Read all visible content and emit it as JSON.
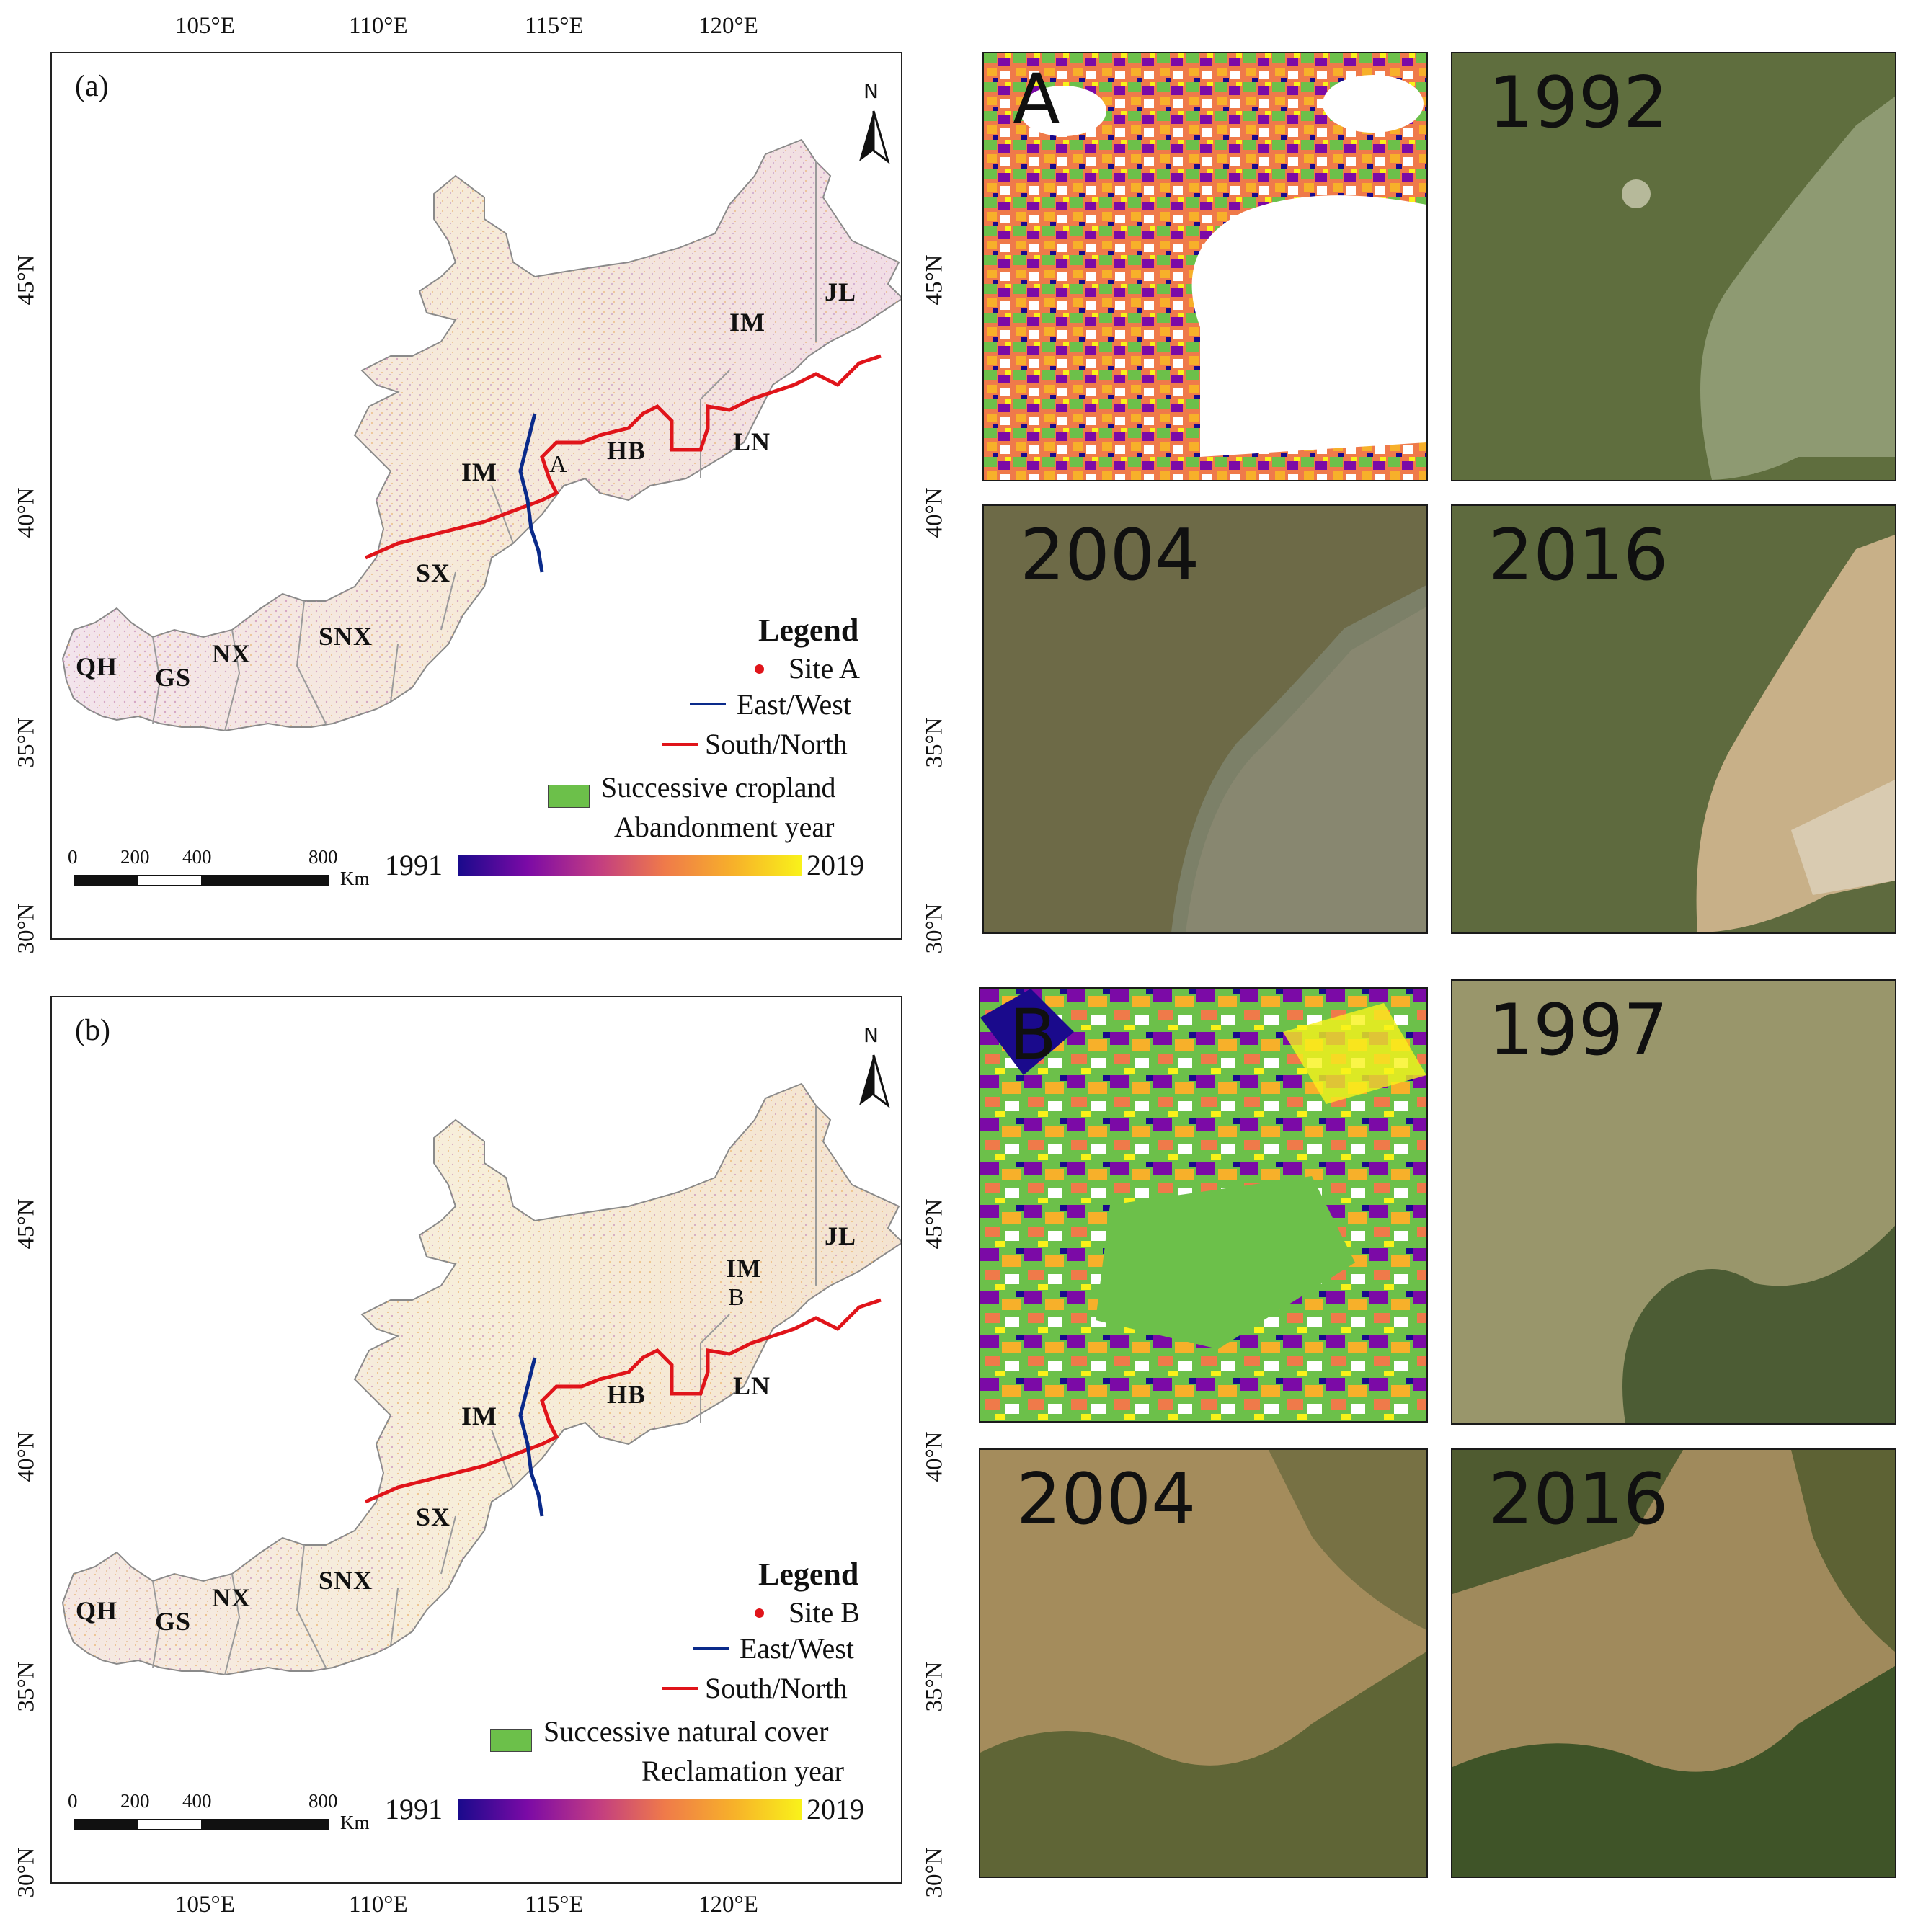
{
  "top_axis_labels": [
    "105°E",
    "110°E",
    "115°E",
    "120°E"
  ],
  "bottom_axis_labels": [
    "105°E",
    "110°E",
    "115°E",
    "120°E"
  ],
  "lat_labels": [
    "45°N",
    "40°N",
    "35°N",
    "30°N"
  ],
  "panels": [
    {
      "label": "(a)",
      "north": "N",
      "provinces": [
        "QH",
        "GS",
        "NX",
        "SNX",
        "SX",
        "IM",
        "IM",
        "HB",
        "LN",
        "JL"
      ],
      "site_marker": "A",
      "legend": {
        "title": "Legend",
        "site": "Site A",
        "east_west": "East/West",
        "south_north": "South/North",
        "successive": "Successive cropland",
        "ramp_title": "Abandonment  year",
        "ramp_start": "1991",
        "ramp_end": "2019"
      },
      "scale_bar": {
        "ticks": [
          "0",
          "200",
          "400",
          "800"
        ],
        "unit": "Km"
      }
    },
    {
      "label": "(b)",
      "north": "N",
      "provinces": [
        "QH",
        "GS",
        "NX",
        "SNX",
        "SX",
        "IM",
        "IM",
        "HB",
        "LN",
        "JL"
      ],
      "site_marker": "B",
      "legend": {
        "title": "Legend",
        "site": "Site B",
        "east_west": "East/West",
        "south_north": "South/North",
        "successive": "Successive natural cover",
        "ramp_title": "Reclamation year",
        "ramp_start": "1991",
        "ramp_end": "2019"
      },
      "scale_bar": {
        "ticks": [
          "0",
          "200",
          "400",
          "800"
        ],
        "unit": "Km"
      }
    }
  ],
  "site_A_images": {
    "map_label": "A",
    "years": [
      "1992",
      "2004",
      "2016"
    ]
  },
  "site_B_images": {
    "map_label": "B",
    "years": [
      "1997",
      "2004",
      "2016"
    ]
  },
  "colors": {
    "east_west_line": "#0a2a8a",
    "south_north_line": "#e0141a",
    "site_dot": "#e0141a",
    "successive": "#6cc04a",
    "ramp": [
      "#1a0a8c",
      "#7b0aa6",
      "#c03a84",
      "#ef7a4a",
      "#f7b02a",
      "#f9f21a"
    ]
  }
}
